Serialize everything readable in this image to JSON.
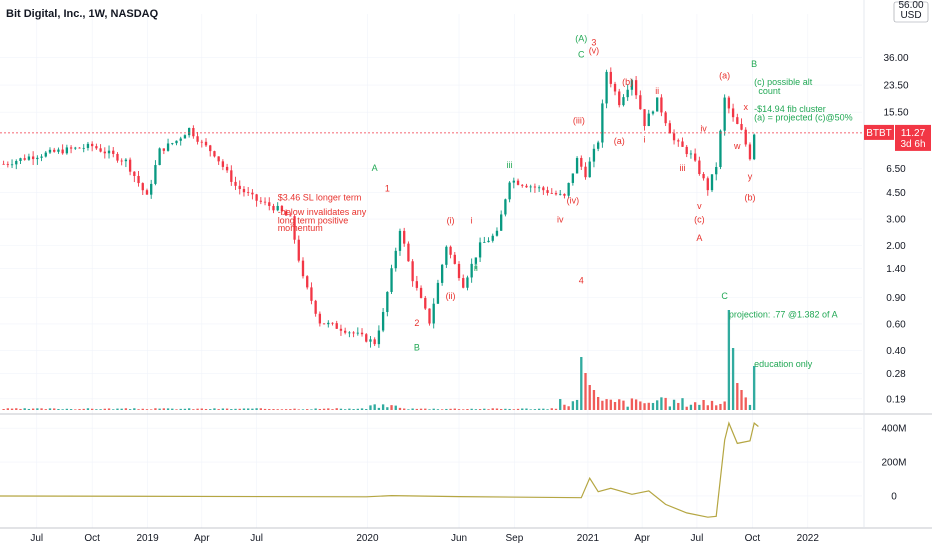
{
  "chart_data": {
    "type": "candlestick",
    "title": "Bit Digital, Inc., 1W, NASDAQ",
    "currency": "USD",
    "y_scale": "log",
    "ylim": [
      0.16,
      60
    ],
    "price_ticks": [
      "36.00",
      "23.50",
      "15.50",
      "11.27",
      "6.50",
      "4.50",
      "3.00",
      "2.00",
      "1.40",
      "0.90",
      "0.60",
      "0.40",
      "0.28",
      "0.19"
    ],
    "price_tick_values": [
      36,
      23.5,
      15.5,
      11.27,
      6.5,
      4.5,
      3.0,
      2.0,
      1.4,
      0.9,
      0.6,
      0.4,
      0.28,
      0.19
    ],
    "top_tick_partial": "56.00",
    "current_price": {
      "symbol": "BTBT",
      "value": "11.27",
      "countdown": "3d 6h",
      "level": 11.27
    },
    "x_ticks": [
      "Jul",
      "Oct",
      "2019",
      "Apr",
      "Jul",
      "2020",
      "Jun",
      "Sep",
      "2021",
      "Apr",
      "Jul",
      "Oct",
      "2022"
    ],
    "x_tick_dates": [
      "2018-07-01",
      "2018-10-01",
      "2019-01-01",
      "2019-04-01",
      "2019-07-01",
      "2020-01-01",
      "2020-06-01",
      "2020-09-01",
      "2021-01-01",
      "2021-04-01",
      "2021-07-01",
      "2021-10-01",
      "2022-01-01"
    ],
    "x_range": [
      "2018-05-01",
      "2022-04-01"
    ],
    "last_bar": "2021-10-04",
    "price_keypoints": [
      {
        "date": "2018-05-07",
        "value": 7.0
      },
      {
        "date": "2018-06-18",
        "value": 7.8
      },
      {
        "date": "2018-08-13",
        "value": 8.6
      },
      {
        "date": "2018-10-01",
        "value": 9.2
      },
      {
        "date": "2018-11-26",
        "value": 7.3
      },
      {
        "date": "2018-12-31",
        "value": 4.2
      },
      {
        "date": "2019-01-21",
        "value": 8.6
      },
      {
        "date": "2019-02-18",
        "value": 10.0
      },
      {
        "date": "2019-03-11",
        "value": 12.0
      },
      {
        "date": "2019-04-01",
        "value": 9.6
      },
      {
        "date": "2019-04-22",
        "value": 8.2
      },
      {
        "date": "2019-05-27",
        "value": 5.0
      },
      {
        "date": "2019-07-01",
        "value": 4.0
      },
      {
        "date": "2019-08-05",
        "value": 3.5
      },
      {
        "date": "2019-08-26",
        "value": 3.0
      },
      {
        "date": "2019-09-16",
        "value": 1.2
      },
      {
        "date": "2019-10-14",
        "value": 0.62
      },
      {
        "date": "2019-11-25",
        "value": 0.55
      },
      {
        "date": "2020-01-13",
        "value": 0.45
      },
      {
        "date": "2020-01-27",
        "value": 0.7
      },
      {
        "date": "2020-02-24",
        "value": 2.6
      },
      {
        "date": "2020-03-16",
        "value": 1.2
      },
      {
        "date": "2020-04-13",
        "value": 0.62
      },
      {
        "date": "2020-05-11",
        "value": 2.0
      },
      {
        "date": "2020-06-08",
        "value": 1.1
      },
      {
        "date": "2020-07-06",
        "value": 2.0
      },
      {
        "date": "2020-08-03",
        "value": 2.4
      },
      {
        "date": "2020-08-24",
        "value": 5.5
      },
      {
        "date": "2020-10-12",
        "value": 4.8
      },
      {
        "date": "2020-11-23",
        "value": 4.2
      },
      {
        "date": "2020-12-14",
        "value": 7.5
      },
      {
        "date": "2020-12-28",
        "value": 6.0
      },
      {
        "date": "2021-01-18",
        "value": 10.0
      },
      {
        "date": "2021-02-01",
        "value": 29.0
      },
      {
        "date": "2021-02-22",
        "value": 18.0
      },
      {
        "date": "2021-03-15",
        "value": 26.0
      },
      {
        "date": "2021-04-05",
        "value": 13.0
      },
      {
        "date": "2021-04-26",
        "value": 18.5
      },
      {
        "date": "2021-05-24",
        "value": 10.0
      },
      {
        "date": "2021-06-21",
        "value": 8.0
      },
      {
        "date": "2021-07-19",
        "value": 4.8
      },
      {
        "date": "2021-08-02",
        "value": 6.8
      },
      {
        "date": "2021-08-16",
        "value": 19.0
      },
      {
        "date": "2021-08-30",
        "value": 14.0
      },
      {
        "date": "2021-09-13",
        "value": 11.5
      },
      {
        "date": "2021-09-27",
        "value": 7.8
      },
      {
        "date": "2021-10-04",
        "value": 11.27
      }
    ],
    "volume_spikes": [
      {
        "date": "2020-12-21",
        "height": 0.53,
        "color": "green"
      },
      {
        "date": "2020-12-28",
        "height": 0.37,
        "color": "red"
      },
      {
        "date": "2021-01-04",
        "height": 0.25,
        "color": "red"
      },
      {
        "date": "2021-01-11",
        "height": 0.2,
        "color": "red"
      },
      {
        "date": "2021-01-18",
        "height": 0.13,
        "color": "red"
      },
      {
        "date": "2021-08-23",
        "height": 1.0,
        "color": "green"
      },
      {
        "date": "2021-08-30",
        "height": 0.62,
        "color": "green"
      },
      {
        "date": "2021-09-06",
        "height": 0.27,
        "color": "red"
      },
      {
        "date": "2021-09-13",
        "height": 0.2,
        "color": "red"
      },
      {
        "date": "2021-10-04",
        "height": 0.44,
        "color": "green"
      }
    ],
    "indicator": {
      "ticks": [
        "400M",
        "200M",
        "0"
      ],
      "tick_values": [
        400,
        200,
        0
      ],
      "unit": "M",
      "ylim": [
        -130,
        460
      ],
      "keypoints": [
        {
          "date": "2018-05-01",
          "value": 0
        },
        {
          "date": "2019-12-30",
          "value": -5
        },
        {
          "date": "2020-02-10",
          "value": 2
        },
        {
          "date": "2020-06-01",
          "value": -4
        },
        {
          "date": "2020-12-21",
          "value": -10
        },
        {
          "date": "2021-01-04",
          "value": 105
        },
        {
          "date": "2021-01-18",
          "value": 25
        },
        {
          "date": "2021-02-08",
          "value": 45
        },
        {
          "date": "2021-03-15",
          "value": 10
        },
        {
          "date": "2021-04-12",
          "value": 30
        },
        {
          "date": "2021-05-10",
          "value": -50
        },
        {
          "date": "2021-06-14",
          "value": -100
        },
        {
          "date": "2021-07-19",
          "value": -125
        },
        {
          "date": "2021-08-02",
          "value": -120
        },
        {
          "date": "2021-08-16",
          "value": 330
        },
        {
          "date": "2021-08-23",
          "value": 430
        },
        {
          "date": "2021-09-06",
          "value": 310
        },
        {
          "date": "2021-09-27",
          "value": 325
        },
        {
          "date": "2021-10-04",
          "value": 430
        },
        {
          "date": "2021-10-11",
          "value": 410
        }
      ]
    }
  },
  "annotations": [
    {
      "text": "(A)",
      "date": "2020-12-21",
      "price": 46,
      "color": "#22a855"
    },
    {
      "text": "3",
      "date": "2021-01-11",
      "price": 43,
      "color": "#e8322e"
    },
    {
      "text": "(v)",
      "date": "2021-01-11",
      "price": 38,
      "color": "#e8322e"
    },
    {
      "text": "C",
      "date": "2020-12-21",
      "price": 36,
      "color": "#22a855"
    },
    {
      "text": "B",
      "date": "2021-10-04",
      "price": 31,
      "color": "#22a855"
    },
    {
      "text": "(c) possible alt",
      "date": "2021-10-04",
      "price": 23.5,
      "color": "#22a855"
    },
    {
      "text": "count",
      "date": "2021-10-11",
      "price": 20.5,
      "color": "#22a855"
    },
    {
      "text": "(a)",
      "date": "2021-08-16",
      "price": 26,
      "color": "#e8322e"
    },
    {
      "text": "(b)",
      "date": "2021-03-08",
      "price": 23.5,
      "color": "#e8322e"
    },
    {
      "text": "ii",
      "date": "2021-04-26",
      "price": 20.5,
      "color": "#e8322e"
    },
    {
      "text": "x",
      "date": "2021-09-20",
      "price": 16,
      "color": "#e8322e"
    },
    {
      "text": "-$14.94 fib cluster",
      "date": "2021-10-04",
      "price": 15.5,
      "color": "#22a855"
    },
    {
      "text": "(a) = projected (c)@50%",
      "date": "2021-10-04",
      "price": 13.6,
      "color": "#22a855"
    },
    {
      "text": "(iii)",
      "date": "2020-12-07",
      "price": 13.0,
      "color": "#e8322e"
    },
    {
      "text": "iv",
      "date": "2021-07-12",
      "price": 11.5,
      "color": "#e8322e"
    },
    {
      "text": "(a)",
      "date": "2021-02-22",
      "price": 9.5,
      "color": "#e8322e"
    },
    {
      "text": "i",
      "date": "2021-04-05",
      "price": 9.7,
      "color": "#e8322e"
    },
    {
      "text": "w",
      "date": "2021-09-06",
      "price": 8.8,
      "color": "#e8322e"
    },
    {
      "text": "iii",
      "date": "2020-08-24",
      "price": 6.6,
      "color": "#22a855"
    },
    {
      "text": "A",
      "date": "2020-01-13",
      "price": 6.3,
      "color": "#22a855"
    },
    {
      "text": "iii",
      "date": "2021-06-07",
      "price": 6.3,
      "color": "#e8322e"
    },
    {
      "text": "y",
      "date": "2021-09-27",
      "price": 5.5,
      "color": "#e8322e"
    },
    {
      "text": "1",
      "date": "2020-02-03",
      "price": 4.6,
      "color": "#e8322e"
    },
    {
      "text": "$3.46 SL longer term",
      "date": "2019-08-05",
      "price": 4.0,
      "color": "#e8322e"
    },
    {
      "text": "(iv)",
      "date": "2020-12-07",
      "price": 3.8,
      "color": "#e8322e"
    },
    {
      "text": "v",
      "date": "2021-07-05",
      "price": 3.5,
      "color": "#e8322e"
    },
    {
      "text": "(b)",
      "date": "2021-09-27",
      "price": 4.0,
      "color": "#e8322e"
    },
    {
      "text": "-below invalidates any",
      "date": "2019-08-05",
      "price": 3.2,
      "color": "#e8322e"
    },
    {
      "text": "long term positive",
      "date": "2019-08-05",
      "price": 2.8,
      "color": "#e8322e"
    },
    {
      "text": "momentum",
      "date": "2019-08-05",
      "price": 2.5,
      "color": "#e8322e"
    },
    {
      "text": "iv",
      "date": "2020-11-16",
      "price": 2.85,
      "color": "#e8322e"
    },
    {
      "text": "(c)",
      "date": "2021-07-05",
      "price": 2.85,
      "color": "#e8322e"
    },
    {
      "text": "(i)",
      "date": "2020-05-18",
      "price": 2.8,
      "color": "#e8322e"
    },
    {
      "text": "i",
      "date": "2020-06-22",
      "price": 2.8,
      "color": "#e8322e"
    },
    {
      "text": "A",
      "date": "2021-07-05",
      "price": 2.15,
      "color": "#e8322e"
    },
    {
      "text": "ii",
      "date": "2020-06-29",
      "price": 1.35,
      "color": "#22a855"
    },
    {
      "text": "4",
      "date": "2020-12-21",
      "price": 1.12,
      "color": "#e8322e"
    },
    {
      "text": "(ii)",
      "date": "2020-05-18",
      "price": 0.88,
      "color": "#e8322e"
    },
    {
      "text": "C",
      "date": "2021-08-16",
      "price": 0.88,
      "color": "#22a855"
    },
    {
      "text": "projection: .77 @1.382 of A",
      "date": "2021-08-23",
      "price": 0.66,
      "color": "#22a855"
    },
    {
      "text": "2",
      "date": "2020-03-23",
      "price": 0.58,
      "color": "#e8322e"
    },
    {
      "text": "B",
      "date": "2020-03-23",
      "price": 0.4,
      "color": "#22a855"
    },
    {
      "text": "education only",
      "date": "2021-10-04",
      "price": 0.31,
      "color": "#22a855"
    }
  ]
}
